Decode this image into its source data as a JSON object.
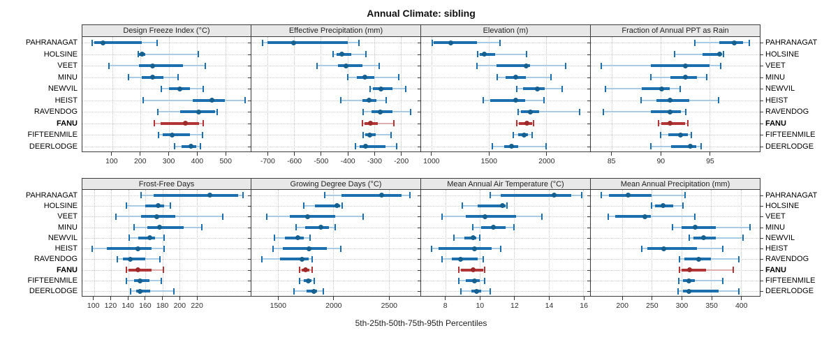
{
  "title": "Annual Climate: sibling",
  "caption": "5th-25th-50th-75th-95th Percentiles",
  "highlight_station": "FANU",
  "stations": [
    "PAHRANAGAT",
    "HOLSINE",
    "VEET",
    "MINU",
    "NEWVIL",
    "HEIST",
    "RAVENDOG",
    "FANU",
    "FIFTEENMILE",
    "DEERLODGE"
  ],
  "colors": {
    "blue_solid": "#1b6fae",
    "blue_light": "#a9cbe4",
    "blue_dot": "#15608f",
    "red_solid": "#b23434",
    "red_light": "#dfaeae",
    "red_dot": "#9e2b2b",
    "panel_border": "#3b3b3b",
    "header_bg": "#e8e8e8",
    "gridline": "#c9c9c9"
  },
  "percentile_labels": [
    "5th",
    "25th",
    "50th",
    "75th",
    "95th"
  ],
  "chart_data": [
    {
      "type": "interval",
      "title": "Design Freeze Index (°C)",
      "axis": {
        "min": -5,
        "max": 590,
        "ticks": [
          100,
          200,
          300,
          400,
          500
        ]
      },
      "values": [
        [
          30,
          36,
          67,
          205,
          259
        ],
        [
          192,
          195,
          205,
          217,
          404
        ],
        [
          90,
          196,
          243,
          350,
          430
        ],
        [
          157,
          205,
          242,
          282,
          334
        ],
        [
          273,
          301,
          340,
          376,
          422
        ],
        [
          209,
          385,
          452,
          498,
          570
        ],
        [
          261,
          340,
          406,
          463,
          472
        ],
        [
          249,
          272,
          360,
          408,
          422
        ],
        [
          264,
          278,
          312,
          374,
          420
        ],
        [
          320,
          345,
          380,
          397,
          412
        ]
      ]
    },
    {
      "type": "interval",
      "title": "Effective Precipitation (mm)",
      "axis": {
        "min": -761,
        "max": -126,
        "ticks": [
          -700,
          -600,
          -500,
          -400,
          -300,
          -200
        ]
      },
      "values": [
        [
          -720,
          -700,
          -602,
          -400,
          -356
        ],
        [
          -455,
          -440,
          -420,
          -385,
          -330
        ],
        [
          -515,
          -435,
          -405,
          -345,
          -280
        ],
        [
          -400,
          -365,
          -334,
          -300,
          -208
        ],
        [
          -315,
          -305,
          -273,
          -230,
          -180
        ],
        [
          -425,
          -345,
          -320,
          -290,
          -255
        ],
        [
          -340,
          -310,
          -278,
          -230,
          -162
        ],
        [
          -343,
          -335,
          -314,
          -287,
          -227
        ],
        [
          -340,
          -332,
          -316,
          -293,
          -237
        ],
        [
          -370,
          -355,
          -332,
          -256,
          -215
        ]
      ]
    },
    {
      "type": "interval",
      "title": "Elevation (m)",
      "axis": {
        "min": 910,
        "max": 2383,
        "ticks": [
          1000,
          1500,
          2000
        ]
      },
      "values": [
        [
          1005,
          1020,
          1170,
          1395,
          1595
        ],
        [
          1405,
          1420,
          1460,
          1555,
          1830
        ],
        [
          1395,
          1565,
          1825,
          1860,
          2170
        ],
        [
          1575,
          1645,
          1735,
          1820,
          2040
        ],
        [
          1745,
          1800,
          1925,
          1990,
          2140
        ],
        [
          1450,
          1515,
          1735,
          1820,
          1980
        ],
        [
          1755,
          1780,
          1860,
          1940,
          2290
        ],
        [
          1745,
          1760,
          1830,
          1875,
          1890
        ],
        [
          1715,
          1757,
          1808,
          1842,
          1878
        ],
        [
          1530,
          1635,
          1697,
          1757,
          2000
        ]
      ]
    },
    {
      "type": "interval",
      "title": "Fraction of Annual PPT as Rain",
      "axis": {
        "min": 82.9,
        "max": 100.1,
        "ticks": [
          85,
          90,
          95
        ]
      },
      "values": [
        [
          93.5,
          96.0,
          97.5,
          98.4,
          99.0
        ],
        [
          91.4,
          94.3,
          96.0,
          96.2,
          96.4
        ],
        [
          84.0,
          89.0,
          92.5,
          95.0,
          96.1
        ],
        [
          89.0,
          91.0,
          92.5,
          93.7,
          94.7
        ],
        [
          84.4,
          88.1,
          90.1,
          90.9,
          92.0
        ],
        [
          88.0,
          89.6,
          91.0,
          92.9,
          95.9
        ],
        [
          84.2,
          89.0,
          91.0,
          92.1,
          92.6
        ],
        [
          89.8,
          90.1,
          91.0,
          92.5,
          92.8
        ],
        [
          90.0,
          90.8,
          92.0,
          92.8,
          93.1
        ],
        [
          89.0,
          91.1,
          93.0,
          93.6,
          94.1
        ]
      ]
    },
    {
      "type": "interval",
      "title": "Frost-Free Days",
      "axis": {
        "min": 86.5,
        "max": 283,
        "ticks": [
          100,
          120,
          140,
          160,
          180,
          200,
          220
        ]
      },
      "values": [
        [
          155,
          170,
          235,
          268,
          274
        ],
        [
          138,
          160,
          175,
          182,
          189
        ],
        [
          126,
          155,
          173,
          195,
          250
        ],
        [
          147,
          162,
          177,
          205,
          226
        ],
        [
          141,
          152,
          165,
          171,
          182
        ],
        [
          98,
          115,
          151,
          167,
          182
        ],
        [
          127,
          134,
          142,
          160,
          177
        ],
        [
          138,
          140,
          151,
          167,
          181
        ],
        [
          138,
          147,
          154,
          165,
          179
        ],
        [
          143,
          149,
          154,
          166,
          193
        ]
      ]
    },
    {
      "type": "interval",
      "title": "Growing Degree Days (°C)",
      "axis": {
        "min": 1259,
        "max": 2787,
        "ticks": [
          1500,
          2000,
          2500
        ]
      },
      "values": [
        [
          1925,
          2075,
          2435,
          2615,
          2695
        ],
        [
          1735,
          1835,
          2035,
          2060,
          2080
        ],
        [
          1400,
          1605,
          1770,
          2015,
          2270
        ],
        [
          1660,
          1745,
          1890,
          1960,
          2015
        ],
        [
          1470,
          1565,
          1680,
          1730,
          1790
        ],
        [
          1455,
          1540,
          1780,
          1940,
          2070
        ],
        [
          1355,
          1520,
          1715,
          1775,
          1810
        ],
        [
          1695,
          1715,
          1750,
          1785,
          1810
        ],
        [
          1695,
          1730,
          1775,
          1805,
          1830
        ],
        [
          1645,
          1760,
          1825,
          1855,
          1910
        ]
      ]
    },
    {
      "type": "interval",
      "title": "Mean Annual Air Temperature (°C)",
      "axis": {
        "min": 6.6,
        "max": 16.4,
        "ticks": [
          8,
          10,
          12,
          14,
          16
        ]
      },
      "values": [
        [
          10.6,
          11.2,
          14.3,
          15.3,
          15.9
        ],
        [
          9.0,
          9.9,
          11.3,
          11.5,
          11.6
        ],
        [
          7.8,
          9.2,
          10.3,
          12.1,
          13.6
        ],
        [
          9.6,
          10.1,
          10.8,
          11.5,
          12.0
        ],
        [
          8.5,
          9.1,
          9.6,
          9.8,
          10.0
        ],
        [
          7.2,
          7.6,
          9.7,
          10.7,
          11.2
        ],
        [
          7.8,
          8.4,
          8.9,
          9.9,
          10.2
        ],
        [
          8.8,
          8.9,
          9.6,
          10.2,
          10.3
        ],
        [
          8.8,
          9.2,
          9.7,
          10.0,
          10.3
        ],
        [
          8.9,
          9.5,
          9.8,
          10.1,
          10.6
        ]
      ]
    },
    {
      "type": "interval",
      "title": "Mean Annual Precipitation (mm)",
      "axis": {
        "min": 147,
        "max": 432,
        "ticks": [
          200,
          250,
          300,
          350,
          400
        ]
      },
      "values": [
        [
          165,
          178,
          210,
          249,
          306
        ],
        [
          250,
          255,
          269,
          286,
          303
        ],
        [
          176,
          188,
          238,
          248,
          322
        ],
        [
          285,
          300,
          323,
          358,
          415
        ],
        [
          313,
          320,
          337,
          358,
          404
        ],
        [
          233,
          242,
          270,
          326,
          369
        ],
        [
          297,
          305,
          329,
          350,
          397
        ],
        [
          296,
          300,
          314,
          341,
          387
        ],
        [
          295,
          303,
          313,
          323,
          369
        ],
        [
          294,
          303,
          312,
          363,
          397
        ]
      ]
    }
  ]
}
